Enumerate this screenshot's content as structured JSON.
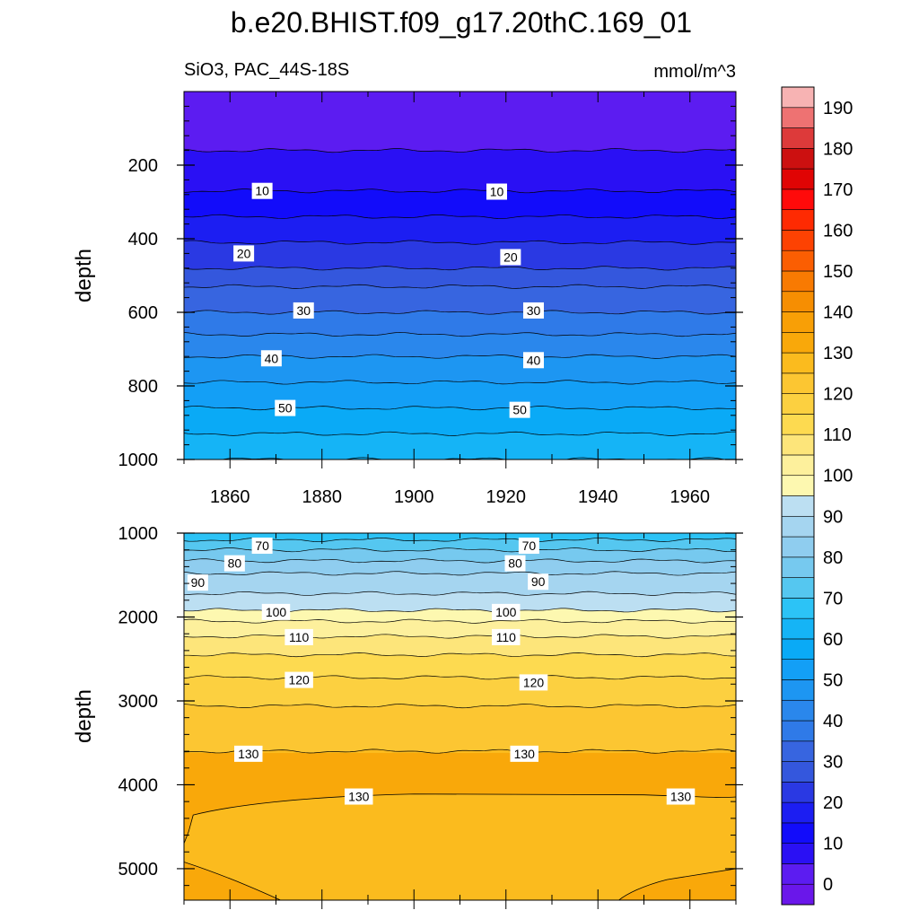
{
  "title": "b.e20.BHIST.f09_g17.20thC.169_01",
  "subtitle_left": "SiO3, PAC_44S-18S",
  "subtitle_right": "mmol/m^3",
  "chart_data": {
    "type": "heatmap",
    "title": "b.e20.BHIST.f09_g17.20thC.169_01",
    "variable": "SiO3, PAC_44S-18S",
    "units": "mmol/m^3",
    "xlim": [
      1850,
      1970
    ],
    "x_ticks": [
      1860,
      1880,
      1900,
      1920,
      1940,
      1960
    ],
    "colorbar": {
      "levels": [
        -5,
        0,
        5,
        10,
        15,
        20,
        25,
        30,
        35,
        40,
        45,
        50,
        55,
        60,
        65,
        70,
        75,
        80,
        85,
        90,
        95,
        100,
        105,
        110,
        115,
        120,
        125,
        130,
        135,
        140,
        145,
        150,
        155,
        160,
        165,
        170,
        175,
        180,
        185,
        190,
        195
      ],
      "tick_labels": [
        "0",
        "10",
        "20",
        "30",
        "40",
        "50",
        "60",
        "70",
        "80",
        "90",
        "100",
        "110",
        "120",
        "130",
        "140",
        "150",
        "160",
        "170",
        "180",
        "190"
      ],
      "tick_values": [
        0,
        10,
        20,
        30,
        40,
        50,
        60,
        70,
        80,
        90,
        100,
        110,
        120,
        130,
        140,
        150,
        160,
        170,
        180,
        190
      ],
      "colors": [
        "#6a17ea",
        "#5c1cf1",
        "#2a10f4",
        "#120cfa",
        "#1c1ef2",
        "#2a39e3",
        "#3457dd",
        "#3765e0",
        "#2f7ae8",
        "#2a87ec",
        "#1d96f2",
        "#139ff6",
        "#0aaaf6",
        "#15b4f6",
        "#2cc3f6",
        "#55c7f0",
        "#76c9ef",
        "#8fcdef",
        "#a5d5f0",
        "#bcdff2",
        "#fdf8b0",
        "#fdf09c",
        "#fde57a",
        "#fdda50",
        "#fcd040",
        "#fcc632",
        "#fbbb1e",
        "#f9a80a",
        "#f89f06",
        "#f68e02",
        "#f87a02",
        "#fb5e02",
        "#fd4202",
        "#fe2a02",
        "#ff0a0a",
        "#e00404",
        "#cc1010",
        "#dd3a3a",
        "#ee7272",
        "#f7b3b3"
      ]
    },
    "panels": [
      {
        "name": "upper",
        "ylabel": "depth",
        "ylim": [
          0,
          1000
        ],
        "y_ticks": [
          200,
          400,
          600,
          800,
          1000
        ],
        "depth_levels": [
          0,
          160,
          270,
          340,
          410,
          480,
          530,
          600,
          660,
          720,
          790,
          860,
          930,
          1000
        ],
        "values": [
          2,
          6,
          13,
          18,
          23,
          28,
          32,
          37,
          41,
          46,
          51,
          56,
          61
        ],
        "contour_labels": [
          {
            "text": "10",
            "x": 1867,
            "y": 270
          },
          {
            "text": "10",
            "x": 1918,
            "y": 272
          },
          {
            "text": "20",
            "x": 1863,
            "y": 440
          },
          {
            "text": "20",
            "x": 1921,
            "y": 450
          },
          {
            "text": "30",
            "x": 1876,
            "y": 595
          },
          {
            "text": "30",
            "x": 1926,
            "y": 595
          },
          {
            "text": "40",
            "x": 1869,
            "y": 725
          },
          {
            "text": "40",
            "x": 1926,
            "y": 730
          },
          {
            "text": "50",
            "x": 1872,
            "y": 860
          },
          {
            "text": "50",
            "x": 1923,
            "y": 865
          }
        ]
      },
      {
        "name": "lower",
        "ylabel": "depth",
        "ylim": [
          1000,
          5375
        ],
        "y_ticks": [
          1000,
          2000,
          3000,
          4000,
          5000
        ],
        "depth_levels": [
          1000,
          1080,
          1200,
          1330,
          1480,
          1720,
          1920,
          2050,
          2230,
          2450,
          2720,
          3060,
          3600
        ],
        "values": [
          67,
          72,
          77,
          82,
          87,
          92,
          97,
          103,
          107,
          112,
          118,
          123,
          127
        ],
        "deep_region": {
          "value": 133,
          "bulge_value": 127
        },
        "contour_labels": [
          {
            "text": "70",
            "x": 1867,
            "y": 1150
          },
          {
            "text": "80",
            "x": 1861,
            "y": 1360
          },
          {
            "text": "90",
            "x": 1853,
            "y": 1590
          },
          {
            "text": "100",
            "x": 1870,
            "y": 1940
          },
          {
            "text": "110",
            "x": 1875,
            "y": 2240
          },
          {
            "text": "120",
            "x": 1875,
            "y": 2750
          },
          {
            "text": "70",
            "x": 1925,
            "y": 1150
          },
          {
            "text": "80",
            "x": 1922,
            "y": 1360
          },
          {
            "text": "90",
            "x": 1927,
            "y": 1580
          },
          {
            "text": "100",
            "x": 1920,
            "y": 1940
          },
          {
            "text": "110",
            "x": 1920,
            "y": 2240
          },
          {
            "text": "120",
            "x": 1926,
            "y": 2780
          },
          {
            "text": "130",
            "x": 1864,
            "y": 3630
          },
          {
            "text": "130",
            "x": 1924,
            "y": 3630
          },
          {
            "text": "130",
            "x": 1888,
            "y": 4140
          },
          {
            "text": "130",
            "x": 1958,
            "y": 4140
          }
        ]
      }
    ]
  }
}
